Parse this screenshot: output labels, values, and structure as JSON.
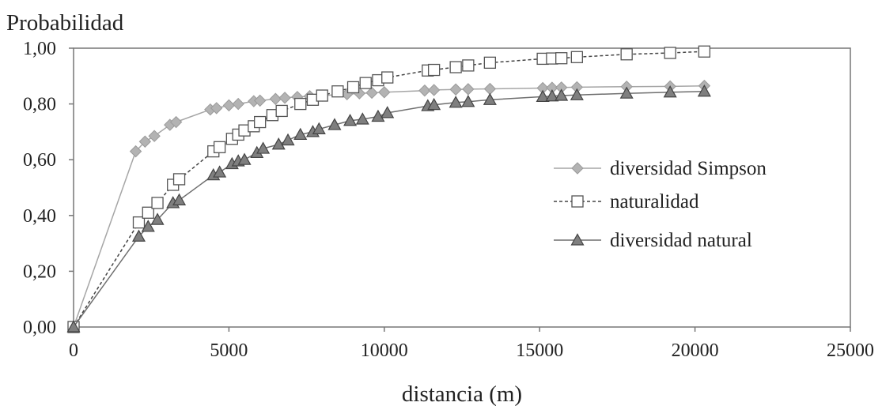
{
  "chart_data": {
    "type": "line",
    "title": "",
    "ylabel": "Probabilidad",
    "xlabel": "distancia (m)",
    "xlim": [
      0,
      25000
    ],
    "ylim": [
      0,
      1
    ],
    "xticks": [
      "0",
      "5000",
      "10000",
      "15000",
      "20000",
      "25000"
    ],
    "yticks": [
      "0,00",
      "0,20",
      "0,40",
      "0,60",
      "0,80",
      "1,00"
    ],
    "grid": false,
    "legend_position": "right",
    "series": [
      {
        "name": "diversidad Simpson",
        "marker": "diamond",
        "line_style": "solid",
        "color": "#a6a6a6",
        "points": [
          [
            0,
            0.0
          ],
          [
            2000,
            0.63
          ],
          [
            2300,
            0.665
          ],
          [
            2600,
            0.685
          ],
          [
            3100,
            0.725
          ],
          [
            3300,
            0.735
          ],
          [
            4400,
            0.78
          ],
          [
            4600,
            0.785
          ],
          [
            5000,
            0.795
          ],
          [
            5300,
            0.8
          ],
          [
            5800,
            0.81
          ],
          [
            6000,
            0.812
          ],
          [
            6500,
            0.818
          ],
          [
            6800,
            0.822
          ],
          [
            7200,
            0.825
          ],
          [
            7600,
            0.828
          ],
          [
            8000,
            0.83
          ],
          [
            8800,
            0.835
          ],
          [
            9200,
            0.838
          ],
          [
            9600,
            0.84
          ],
          [
            10000,
            0.842
          ],
          [
            11300,
            0.848
          ],
          [
            11600,
            0.85
          ],
          [
            12300,
            0.852
          ],
          [
            12700,
            0.853
          ],
          [
            13400,
            0.854
          ],
          [
            15100,
            0.857
          ],
          [
            15400,
            0.858
          ],
          [
            15700,
            0.859
          ],
          [
            16200,
            0.86
          ],
          [
            17800,
            0.862
          ],
          [
            19200,
            0.863
          ],
          [
            20300,
            0.865
          ]
        ]
      },
      {
        "name": "naturalidad",
        "marker": "square-open",
        "line_style": "dashed",
        "color": "#444444",
        "points": [
          [
            0,
            0.0
          ],
          [
            2100,
            0.375
          ],
          [
            2400,
            0.41
          ],
          [
            2700,
            0.445
          ],
          [
            3200,
            0.51
          ],
          [
            3400,
            0.53
          ],
          [
            4500,
            0.63
          ],
          [
            4700,
            0.645
          ],
          [
            5100,
            0.675
          ],
          [
            5300,
            0.69
          ],
          [
            5500,
            0.705
          ],
          [
            5800,
            0.72
          ],
          [
            6000,
            0.735
          ],
          [
            6400,
            0.76
          ],
          [
            6700,
            0.775
          ],
          [
            7300,
            0.8
          ],
          [
            7700,
            0.815
          ],
          [
            8000,
            0.83
          ],
          [
            8500,
            0.845
          ],
          [
            9000,
            0.86
          ],
          [
            9400,
            0.875
          ],
          [
            9800,
            0.885
          ],
          [
            10100,
            0.895
          ],
          [
            11400,
            0.92
          ],
          [
            11600,
            0.922
          ],
          [
            12300,
            0.932
          ],
          [
            12700,
            0.938
          ],
          [
            13400,
            0.948
          ],
          [
            15100,
            0.962
          ],
          [
            15400,
            0.963
          ],
          [
            15700,
            0.964
          ],
          [
            16200,
            0.968
          ],
          [
            17800,
            0.978
          ],
          [
            19200,
            0.983
          ],
          [
            20300,
            0.988
          ]
        ]
      },
      {
        "name": "diversidad natural",
        "marker": "triangle",
        "line_style": "solid",
        "color": "#6e6e6e",
        "points": [
          [
            0,
            0.0
          ],
          [
            2100,
            0.325
          ],
          [
            2400,
            0.36
          ],
          [
            2700,
            0.385
          ],
          [
            3200,
            0.445
          ],
          [
            3400,
            0.455
          ],
          [
            4500,
            0.545
          ],
          [
            4700,
            0.555
          ],
          [
            5100,
            0.585
          ],
          [
            5300,
            0.595
          ],
          [
            5500,
            0.6
          ],
          [
            5900,
            0.625
          ],
          [
            6100,
            0.64
          ],
          [
            6600,
            0.655
          ],
          [
            6900,
            0.67
          ],
          [
            7300,
            0.69
          ],
          [
            7700,
            0.7
          ],
          [
            7900,
            0.71
          ],
          [
            8400,
            0.725
          ],
          [
            8900,
            0.74
          ],
          [
            9300,
            0.745
          ],
          [
            9800,
            0.755
          ],
          [
            10100,
            0.768
          ],
          [
            11400,
            0.793
          ],
          [
            11600,
            0.797
          ],
          [
            12300,
            0.805
          ],
          [
            12700,
            0.808
          ],
          [
            13400,
            0.815
          ],
          [
            15100,
            0.826
          ],
          [
            15400,
            0.828
          ],
          [
            15700,
            0.83
          ],
          [
            16200,
            0.832
          ],
          [
            17800,
            0.838
          ],
          [
            19200,
            0.842
          ],
          [
            20300,
            0.845
          ]
        ]
      }
    ]
  }
}
